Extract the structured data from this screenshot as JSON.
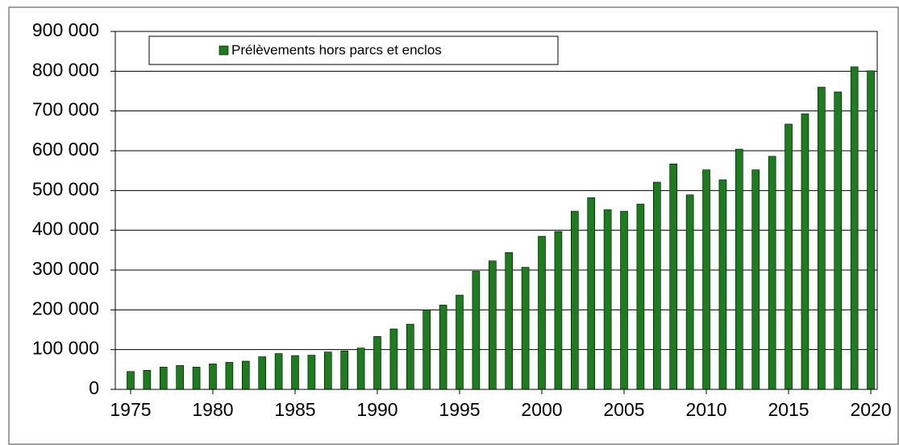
{
  "chart_data": {
    "type": "bar",
    "series": [
      {
        "name": "Prélèvements hors parcs et enclos",
        "color": "#1b7d1b",
        "values": [
          45000,
          48000,
          56000,
          60000,
          56000,
          64000,
          68000,
          71000,
          82000,
          90000,
          85000,
          86000,
          94000,
          97000,
          104000,
          133000,
          152000,
          164000,
          200000,
          212000,
          237000,
          297000,
          323000,
          344000,
          307000,
          385000,
          397000,
          448000,
          482000,
          452000,
          448000,
          466000,
          521000,
          567000,
          489000,
          552000,
          527000,
          604000,
          552000,
          586000,
          667000,
          693000,
          760000,
          748000,
          811000,
          801000
        ]
      }
    ],
    "x": [
      1975,
      1976,
      1977,
      1978,
      1979,
      1980,
      1981,
      1982,
      1983,
      1984,
      1985,
      1986,
      1987,
      1988,
      1989,
      1990,
      1991,
      1992,
      1993,
      1994,
      1995,
      1996,
      1997,
      1998,
      1999,
      2000,
      2001,
      2002,
      2003,
      2004,
      2005,
      2006,
      2007,
      2008,
      2009,
      2010,
      2011,
      2012,
      2013,
      2014,
      2015,
      2016,
      2017,
      2018,
      2019,
      2020
    ],
    "xlim": [
      1974.07,
      2020.39
    ],
    "xticks": [
      1975,
      1980,
      1985,
      1990,
      1995,
      2000,
      2005,
      2010,
      2015,
      2020
    ],
    "ylim": [
      0,
      900000
    ],
    "yticks": [
      {
        "value": 0,
        "label": "0"
      },
      {
        "value": 100000,
        "label": "100 000"
      },
      {
        "value": 200000,
        "label": "200 000"
      },
      {
        "value": 300000,
        "label": "300 000"
      },
      {
        "value": 400000,
        "label": "400 000"
      },
      {
        "value": 500000,
        "label": "500 000"
      },
      {
        "value": 600000,
        "label": "600 000"
      },
      {
        "value": 700000,
        "label": "700 000"
      },
      {
        "value": 800000,
        "label": "800 000"
      },
      {
        "value": 900000,
        "label": "900 000"
      }
    ],
    "grid": true,
    "legend": "top-left"
  }
}
